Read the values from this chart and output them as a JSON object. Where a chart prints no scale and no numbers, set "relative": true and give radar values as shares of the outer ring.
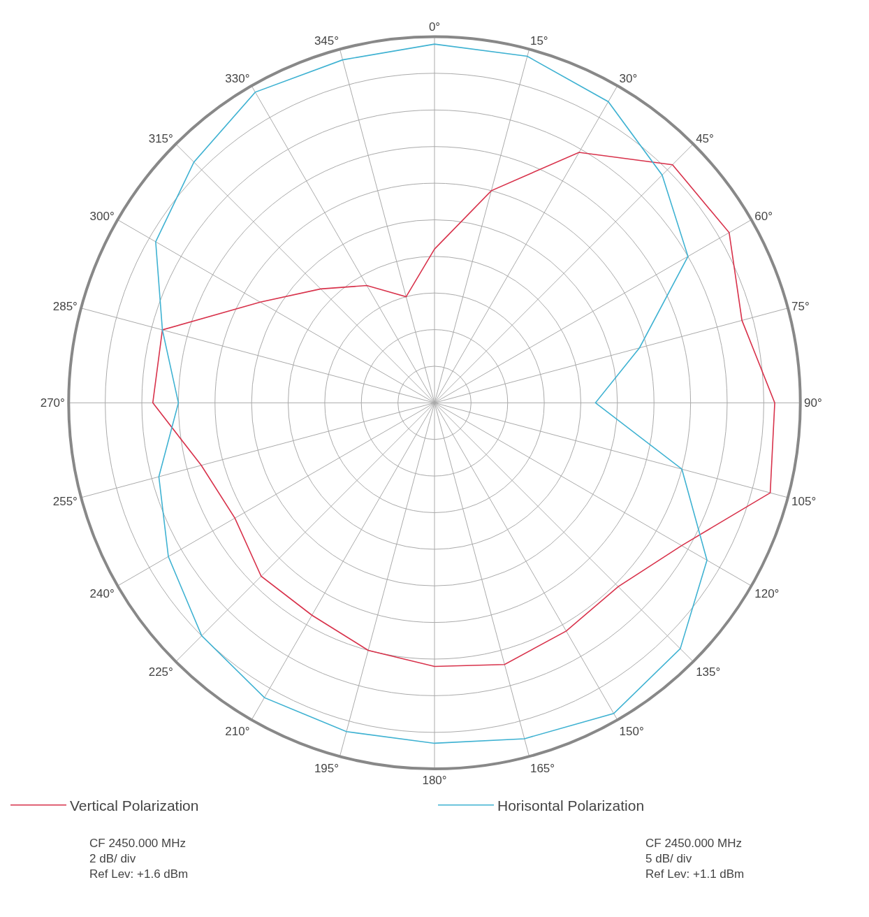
{
  "chart_data": {
    "type": "radar",
    "relative": true,
    "grid": true,
    "legend": "bottom",
    "line_style": "solid",
    "marker": "none",
    "categories": [
      "0°",
      "15°",
      "30°",
      "45°",
      "60°",
      "75°",
      "90°",
      "105°",
      "120°",
      "135°",
      "150°",
      "165°",
      "180°",
      "195°",
      "210°",
      "225°",
      "240°",
      "255°",
      "270°",
      "285°",
      "300°",
      "315°",
      "330°",
      "345°"
    ],
    "series": [
      {
        "name": "Vertical Polarization",
        "color": "#d8324b",
        "values": [
          0.42,
          0.6,
          0.79,
          0.92,
          0.93,
          0.87,
          0.93,
          0.95,
          0.78,
          0.71,
          0.72,
          0.74,
          0.72,
          0.7,
          0.67,
          0.67,
          0.63,
          0.66,
          0.77,
          0.77,
          0.55,
          0.44,
          0.37,
          0.3
        ]
      },
      {
        "name": "Horisontal Polarization",
        "color": "#3fb2d2",
        "values": [
          0.98,
          0.98,
          0.95,
          0.88,
          0.8,
          0.58,
          0.44,
          0.7,
          0.86,
          0.95,
          0.98,
          0.95,
          0.93,
          0.93,
          0.93,
          0.9,
          0.84,
          0.78,
          0.7,
          0.77,
          0.88,
          0.93,
          0.98,
          0.97
        ]
      }
    ],
    "annotations": [
      "CF 2450.000 MHz\n2 dB/ div\nRef Lev: +1.6 dBm",
      "CF 2450.000 MHz\n5 dB/ div\nRef Lev: +1.1 dBm"
    ]
  }
}
